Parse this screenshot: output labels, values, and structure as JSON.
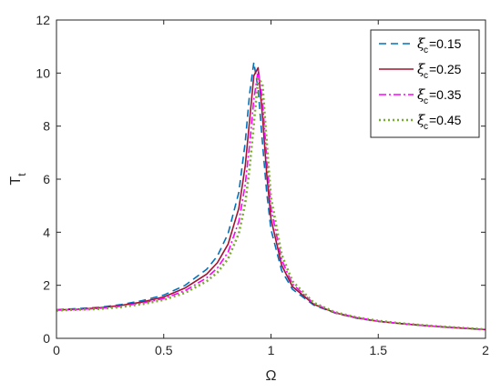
{
  "chart_data": {
    "type": "line",
    "xlabel": "Ω",
    "ylabel": {
      "main": "T",
      "sub": "t"
    },
    "xlim": [
      0,
      2
    ],
    "ylim": [
      0,
      12
    ],
    "xticks": [
      0,
      0.5,
      1,
      1.5,
      2
    ],
    "xtick_labels": [
      "0",
      "0.5",
      "1",
      "1.5",
      "2"
    ],
    "yticks": [
      0,
      2,
      4,
      6,
      8,
      10,
      12
    ],
    "ytick_labels": [
      "0",
      "2",
      "4",
      "6",
      "8",
      "10",
      "12"
    ],
    "grid": false,
    "legend_position": "top-right",
    "series": [
      {
        "legend": {
          "symbol": "ξ",
          "sub": "c",
          "value": "=0.15"
        },
        "color": "#0072BD",
        "dash": "dashed",
        "x": [
          0,
          0.1,
          0.2,
          0.3,
          0.4,
          0.5,
          0.6,
          0.7,
          0.75,
          0.8,
          0.85,
          0.88,
          0.9,
          0.92,
          0.94,
          0.96,
          0.98,
          1.0,
          1.05,
          1.1,
          1.2,
          1.3,
          1.4,
          1.5,
          1.6,
          1.7,
          1.8,
          1.9,
          2.0
        ],
        "y": [
          1.08,
          1.12,
          1.17,
          1.27,
          1.42,
          1.63,
          2.0,
          2.6,
          3.1,
          3.95,
          5.5,
          7.4,
          9.2,
          10.4,
          9.4,
          7.4,
          5.5,
          4.1,
          2.55,
          1.85,
          1.25,
          0.95,
          0.76,
          0.64,
          0.56,
          0.49,
          0.43,
          0.38,
          0.33
        ]
      },
      {
        "legend": {
          "symbol": "ξ",
          "sub": "c",
          "value": "=0.25"
        },
        "color": "#A2142F",
        "dash": "solid",
        "x": [
          0,
          0.1,
          0.2,
          0.3,
          0.4,
          0.5,
          0.6,
          0.7,
          0.75,
          0.8,
          0.85,
          0.88,
          0.9,
          0.92,
          0.94,
          0.96,
          0.98,
          1.0,
          1.05,
          1.1,
          1.2,
          1.3,
          1.4,
          1.5,
          1.6,
          1.7,
          1.8,
          1.9,
          2.0
        ],
        "y": [
          1.07,
          1.1,
          1.15,
          1.24,
          1.37,
          1.56,
          1.9,
          2.42,
          2.85,
          3.55,
          4.9,
          6.5,
          8.2,
          9.9,
          10.2,
          8.4,
          6.2,
          4.5,
          2.75,
          1.95,
          1.28,
          0.96,
          0.77,
          0.64,
          0.56,
          0.49,
          0.43,
          0.38,
          0.33
        ]
      },
      {
        "legend": {
          "symbol": "ξ",
          "sub": "c",
          "value": "=0.35"
        },
        "color": "#FF00FF",
        "dash": "dashdot",
        "x": [
          0,
          0.1,
          0.2,
          0.3,
          0.4,
          0.5,
          0.6,
          0.7,
          0.75,
          0.8,
          0.85,
          0.88,
          0.9,
          0.92,
          0.94,
          0.96,
          0.98,
          1.0,
          1.05,
          1.1,
          1.2,
          1.3,
          1.4,
          1.5,
          1.6,
          1.7,
          1.8,
          1.9,
          2.0
        ],
        "y": [
          1.06,
          1.09,
          1.13,
          1.21,
          1.33,
          1.5,
          1.8,
          2.28,
          2.65,
          3.25,
          4.4,
          5.8,
          7.3,
          9.0,
          10.1,
          9.0,
          6.8,
          4.9,
          2.95,
          2.05,
          1.31,
          0.97,
          0.78,
          0.65,
          0.56,
          0.49,
          0.43,
          0.38,
          0.33
        ]
      },
      {
        "legend": {
          "symbol": "ξ",
          "sub": "c",
          "value": "=0.45"
        },
        "color": "#77AC30",
        "dash": "dotted",
        "x": [
          0,
          0.1,
          0.2,
          0.3,
          0.4,
          0.5,
          0.6,
          0.7,
          0.75,
          0.8,
          0.85,
          0.88,
          0.9,
          0.92,
          0.94,
          0.96,
          0.98,
          1.0,
          1.05,
          1.1,
          1.2,
          1.3,
          1.4,
          1.5,
          1.6,
          1.7,
          1.8,
          1.9,
          2.0
        ],
        "y": [
          1.05,
          1.08,
          1.11,
          1.18,
          1.29,
          1.45,
          1.72,
          2.15,
          2.48,
          3.0,
          3.95,
          5.1,
          6.4,
          8.1,
          9.8,
          9.6,
          7.4,
          5.3,
          3.15,
          2.15,
          1.34,
          0.98,
          0.79,
          0.66,
          0.57,
          0.5,
          0.44,
          0.39,
          0.34
        ]
      }
    ]
  }
}
